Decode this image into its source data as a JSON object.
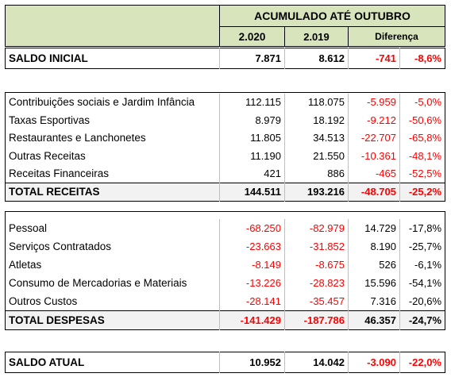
{
  "header": {
    "title": "ACUMULADO ATÉ OUTUBRO",
    "columns": [
      "2.020",
      "2.019",
      "Diferença"
    ]
  },
  "saldo_inicial": [
    "SALDO  INICIAL",
    "7.871",
    "8.612",
    "-741",
    "-8,6%"
  ],
  "receitas": {
    "rows": [
      [
        "Contribuições sociais e Jardim Infância",
        "112.115",
        "118.075",
        "-5.959",
        "-5,0%"
      ],
      [
        "Taxas Esportivas",
        "8.979",
        "18.192",
        "-9.212",
        "-50,6%"
      ],
      [
        "Restaurantes e Lanchonetes",
        "11.805",
        "34.513",
        "-22.707",
        "-65,8%"
      ],
      [
        "Outras Receitas",
        "11.190",
        "21.550",
        "-10.361",
        "-48,1%"
      ],
      [
        "Receitas Financeiras",
        "421",
        "886",
        "-465",
        "-52,5%"
      ]
    ],
    "total": [
      "TOTAL RECEITAS",
      "144.511",
      "193.216",
      "-48.705",
      "-25,2%"
    ]
  },
  "despesas": {
    "rows": [
      [
        "Pessoal",
        "-68.250",
        "-82.979",
        "14.729",
        "-17,8%"
      ],
      [
        "Serviços Contratados",
        "-23.663",
        "-31.852",
        "8.190",
        "-25,7%"
      ],
      [
        "Atletas",
        "-8.149",
        "-8.675",
        "526",
        "-6,1%"
      ],
      [
        "Consumo de Mercadorias e Materiais",
        "-13.226",
        "-28.823",
        "15.596",
        "-54,1%"
      ],
      [
        "Outros Custos",
        "-28.141",
        "-35.457",
        "7.316",
        "-20,6%"
      ]
    ],
    "total": [
      "TOTAL DESPESAS",
      "-141.429",
      "-187.786",
      "46.357",
      "-24,7%"
    ]
  },
  "saldo_atual": [
    "SALDO  ATUAL",
    "10.952",
    "14.042",
    "-3.090",
    "-22,0%"
  ]
}
